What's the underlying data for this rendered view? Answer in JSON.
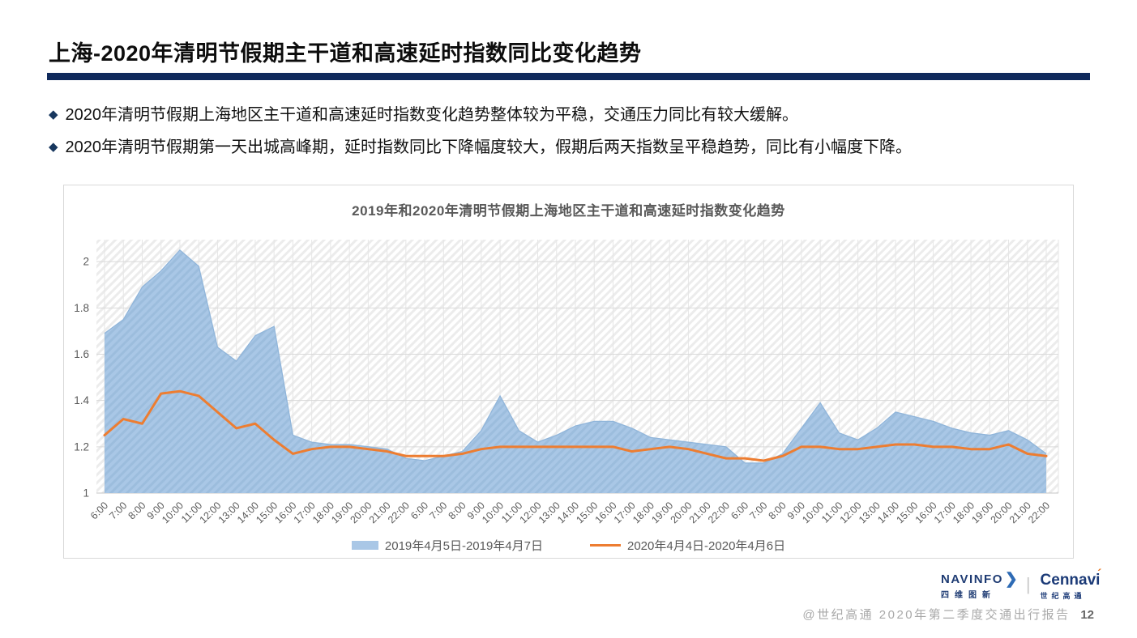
{
  "page": {
    "title": "上海-2020年清明节假期主干道和高速延时指数同比变化趋势",
    "accent_color": "#102a5c"
  },
  "bullets": [
    {
      "marker": "◆",
      "text": "2020年清明节假期上海地区主干道和高速延时指数变化趋势整体较为平稳，交通压力同比有较大缓解。"
    },
    {
      "marker": "◆",
      "text": "2020年清明节假期第一天出城高峰期，延时指数同比下降幅度较大，假期后两天指数呈平稳趋势，同比有小幅度下降。"
    }
  ],
  "chart_data": {
    "type": "area+line",
    "title": "2019年和2020年清明节假期上海地区主干道和高速延时指数变化趋势",
    "xlabel": "",
    "ylabel": "",
    "ylim": [
      1,
      2.095
    ],
    "yticks": [
      1,
      1.2,
      1.4,
      1.6,
      1.8,
      2
    ],
    "grid": true,
    "legend_position": "bottom",
    "categories": [
      "6:00",
      "7:00",
      "8:00",
      "9:00",
      "10:00",
      "11:00",
      "12:00",
      "13:00",
      "14:00",
      "15:00",
      "16:00",
      "17:00",
      "18:00",
      "19:00",
      "20:00",
      "21:00",
      "22:00",
      "6:00",
      "7:00",
      "8:00",
      "9:00",
      "10:00",
      "11:00",
      "12:00",
      "13:00",
      "14:00",
      "15:00",
      "16:00",
      "17:00",
      "18:00",
      "19:00",
      "20:00",
      "21:00",
      "22:00",
      "6:00",
      "7:00",
      "8:00",
      "9:00",
      "10:00",
      "11:00",
      "12:00",
      "13:00",
      "14:00",
      "15:00",
      "16:00",
      "17:00",
      "18:00",
      "19:00",
      "20:00",
      "21:00",
      "22:00"
    ],
    "series": [
      {
        "name": "2019年4月5日-2019年4月7日",
        "type": "area",
        "color": "#a9c7e6",
        "values": [
          1.69,
          1.75,
          1.89,
          1.96,
          2.05,
          1.98,
          1.63,
          1.57,
          1.68,
          1.72,
          1.25,
          1.22,
          1.21,
          1.21,
          1.2,
          1.19,
          1.15,
          1.14,
          1.16,
          1.18,
          1.27,
          1.42,
          1.27,
          1.22,
          1.25,
          1.29,
          1.31,
          1.31,
          1.28,
          1.24,
          1.23,
          1.22,
          1.21,
          1.2,
          1.13,
          1.13,
          1.17,
          1.28,
          1.39,
          1.26,
          1.23,
          1.28,
          1.35,
          1.33,
          1.31,
          1.28,
          1.26,
          1.25,
          1.27,
          1.23,
          1.17
        ]
      },
      {
        "name": "2020年4月4日-2020年4月6日",
        "type": "line",
        "color": "#ed7d31",
        "values": [
          1.25,
          1.32,
          1.3,
          1.43,
          1.44,
          1.42,
          1.35,
          1.28,
          1.3,
          1.23,
          1.17,
          1.19,
          1.2,
          1.2,
          1.19,
          1.18,
          1.16,
          1.16,
          1.16,
          1.17,
          1.19,
          1.2,
          1.2,
          1.2,
          1.2,
          1.2,
          1.2,
          1.2,
          1.18,
          1.19,
          1.2,
          1.19,
          1.17,
          1.15,
          1.15,
          1.14,
          1.16,
          1.2,
          1.2,
          1.19,
          1.19,
          1.2,
          1.21,
          1.21,
          1.2,
          1.2,
          1.19,
          1.19,
          1.21,
          1.17,
          1.16
        ]
      }
    ]
  },
  "footer": {
    "navinfo": {
      "name": "NAVINFO",
      "sub": "四维图新",
      "chevron": "❯"
    },
    "separator": "|",
    "cennavi": {
      "name": "Cennav",
      "i": "i",
      "accent": "´",
      "sub": "世纪高通"
    },
    "caption": "@世纪高通  2020年第二季度交通出行报告",
    "page_number": "12"
  }
}
